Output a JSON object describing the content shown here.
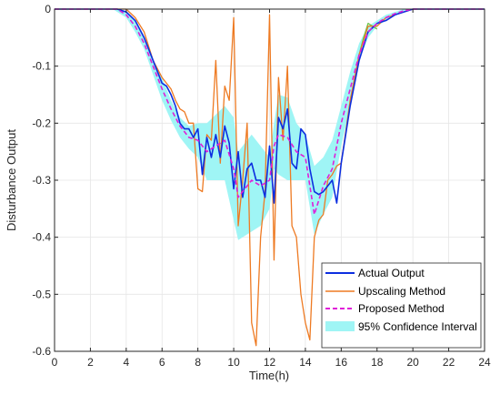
{
  "chart_data": {
    "type": "line",
    "xlabel": "Time(h)",
    "ylabel": "Disturbance Output",
    "xlim": [
      0,
      24
    ],
    "ylim": [
      -0.6,
      0
    ],
    "xticks": [
      "0",
      "2",
      "4",
      "6",
      "8",
      "10",
      "12",
      "14",
      "16",
      "18",
      "20",
      "22",
      "24"
    ],
    "yticks": [
      "0",
      "-0.1",
      "-0.2",
      "-0.3",
      "-0.4",
      "-0.5",
      "-0.6"
    ],
    "grid": true,
    "legend_position": "bottom-right",
    "confidence_interval": {
      "name": "95% Confidence Interval",
      "color": "#9ff5f5",
      "x": [
        0,
        3.25,
        3.5,
        4,
        4.5,
        5,
        5.5,
        6,
        6.5,
        7,
        7.5,
        8,
        8.5,
        9,
        9.5,
        10,
        10.25,
        10.5,
        11,
        11.5,
        12,
        12.25,
        12.5,
        13,
        13.5,
        14,
        14.5,
        15,
        15.5,
        16,
        16.5,
        17,
        17.5,
        18,
        18.5,
        19,
        19.5,
        20,
        24
      ],
      "upper": [
        0,
        0,
        0,
        -0.005,
        -0.02,
        -0.05,
        -0.09,
        -0.12,
        -0.16,
        -0.19,
        -0.205,
        -0.2,
        -0.2,
        -0.185,
        -0.17,
        -0.19,
        -0.25,
        -0.24,
        -0.22,
        -0.24,
        -0.26,
        -0.2,
        -0.15,
        -0.155,
        -0.2,
        -0.22,
        -0.275,
        -0.26,
        -0.23,
        -0.17,
        -0.11,
        -0.06,
        -0.03,
        -0.02,
        -0.01,
        -0.005,
        0,
        0,
        0
      ],
      "lower": [
        0,
        0,
        -0.005,
        -0.015,
        -0.04,
        -0.07,
        -0.115,
        -0.16,
        -0.195,
        -0.225,
        -0.245,
        -0.26,
        -0.3,
        -0.3,
        -0.3,
        -0.37,
        -0.405,
        -0.4,
        -0.39,
        -0.38,
        -0.35,
        -0.28,
        -0.29,
        -0.3,
        -0.3,
        -0.3,
        -0.395,
        -0.36,
        -0.33,
        -0.24,
        -0.17,
        -0.09,
        -0.05,
        -0.03,
        -0.02,
        -0.01,
        -0.003,
        0,
        0
      ]
    },
    "series": [
      {
        "name": "Actual Output",
        "color": "#0c2ee0",
        "dash": "solid",
        "x": [
          0,
          3.5,
          4,
          4.5,
          5,
          5.5,
          6,
          6.25,
          6.5,
          6.75,
          7,
          7.25,
          7.5,
          7.75,
          8,
          8.25,
          8.5,
          8.75,
          9,
          9.25,
          9.5,
          9.75,
          10,
          10.25,
          10.5,
          10.75,
          11,
          11.25,
          11.5,
          11.75,
          12,
          12.25,
          12.5,
          12.75,
          13,
          13.25,
          13.5,
          13.75,
          14,
          14.25,
          14.5,
          14.75,
          15,
          15.25,
          15.5,
          15.75,
          16,
          16.5,
          17,
          17.5,
          18,
          18.5,
          19,
          19.5,
          20,
          24
        ],
        "y": [
          0,
          0,
          -0.005,
          -0.02,
          -0.05,
          -0.09,
          -0.13,
          -0.135,
          -0.15,
          -0.17,
          -0.2,
          -0.21,
          -0.21,
          -0.225,
          -0.21,
          -0.29,
          -0.225,
          -0.26,
          -0.22,
          -0.26,
          -0.205,
          -0.235,
          -0.315,
          -0.25,
          -0.33,
          -0.28,
          -0.27,
          -0.3,
          -0.3,
          -0.33,
          -0.24,
          -0.34,
          -0.19,
          -0.21,
          -0.175,
          -0.27,
          -0.28,
          -0.21,
          -0.22,
          -0.28,
          -0.32,
          -0.325,
          -0.32,
          -0.31,
          -0.3,
          -0.34,
          -0.27,
          -0.17,
          -0.09,
          -0.04,
          -0.025,
          -0.02,
          -0.01,
          -0.005,
          0,
          0
        ]
      },
      {
        "name": "Upscaling Method",
        "color": "#ee7a22",
        "dash": "solid",
        "x": [
          0,
          3.5,
          4,
          4.5,
          5,
          5.5,
          6,
          6.25,
          6.5,
          6.75,
          7,
          7.25,
          7.5,
          7.75,
          8,
          8.25,
          8.5,
          8.75,
          9,
          9.25,
          9.5,
          9.75,
          10,
          10.25,
          10.5,
          10.75,
          11,
          11.25,
          11.5,
          11.75,
          12,
          12.25,
          12.5,
          12.75,
          13,
          13.25,
          13.5,
          13.75,
          14,
          14.25,
          14.5,
          14.75,
          15,
          15.25,
          15.5,
          15.75,
          16,
          16.5,
          17,
          17.5,
          18,
          18.5,
          19,
          19.5,
          20,
          24
        ],
        "y": [
          0,
          0,
          0,
          -0.015,
          -0.04,
          -0.09,
          -0.12,
          -0.13,
          -0.14,
          -0.16,
          -0.175,
          -0.18,
          -0.2,
          -0.2,
          -0.315,
          -0.32,
          -0.22,
          -0.23,
          -0.09,
          -0.27,
          -0.135,
          -0.16,
          -0.015,
          -0.38,
          -0.3,
          -0.2,
          -0.55,
          -0.59,
          -0.4,
          -0.32,
          -0.01,
          -0.44,
          -0.12,
          -0.23,
          -0.1,
          -0.38,
          -0.4,
          -0.5,
          -0.55,
          -0.58,
          -0.4,
          -0.37,
          -0.36,
          -0.3,
          -0.29,
          -0.275,
          -0.27,
          -0.16,
          -0.08,
          -0.03,
          -0.03,
          -0.015,
          -0.01,
          -0.005,
          0,
          0
        ]
      },
      {
        "name": "Proposed Method",
        "color": "#e01ed8",
        "dash": "dashed",
        "x": [
          0,
          3.5,
          4,
          4.5,
          5,
          5.5,
          6,
          6.5,
          7,
          7.5,
          8,
          8.5,
          9,
          9.5,
          10,
          10.25,
          10.5,
          11,
          11.5,
          12,
          12.25,
          12.5,
          13,
          13.5,
          14,
          14.5,
          15,
          15.5,
          16,
          16.5,
          17,
          17.5,
          18,
          18.5,
          19,
          19.5,
          20,
          24
        ],
        "y": [
          0,
          0,
          -0.01,
          -0.03,
          -0.06,
          -0.1,
          -0.14,
          -0.175,
          -0.205,
          -0.225,
          -0.23,
          -0.25,
          -0.24,
          -0.23,
          -0.28,
          -0.33,
          -0.32,
          -0.3,
          -0.31,
          -0.3,
          -0.24,
          -0.22,
          -0.225,
          -0.25,
          -0.26,
          -0.36,
          -0.31,
          -0.28,
          -0.2,
          -0.14,
          -0.08,
          -0.04,
          -0.025,
          -0.015,
          -0.008,
          -0.003,
          0,
          0
        ]
      },
      {
        "name": "",
        "color": "#6cc24a",
        "dash": "solid",
        "x": [
          16.75,
          17,
          17.25,
          17.5,
          17.75,
          18
        ],
        "y": [
          -0.13,
          -0.08,
          -0.05,
          -0.025,
          -0.03,
          -0.035
        ]
      }
    ]
  }
}
